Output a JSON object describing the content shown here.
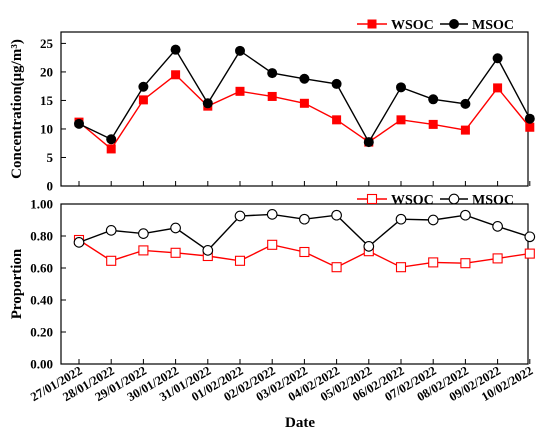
{
  "chart_data": [
    {
      "type": "line",
      "panel": "top",
      "ylabel": "Concentration(μg/m³)",
      "ylim": [
        0,
        27
      ],
      "yticks": [
        0,
        5,
        10,
        15,
        20,
        25
      ],
      "grid": false,
      "legend_position": "top-right",
      "series": [
        {
          "name": "WSOC",
          "color": "#ff0000",
          "marker": "filled-square",
          "values": [
            11.2,
            6.5,
            15.1,
            19.5,
            14.0,
            16.6,
            15.7,
            14.5,
            11.6,
            7.7,
            11.6,
            10.8,
            9.8,
            17.2,
            10.3
          ]
        },
        {
          "name": "MSOC",
          "color": "#000000",
          "marker": "filled-circle",
          "values": [
            10.9,
            8.2,
            17.4,
            23.9,
            14.5,
            23.7,
            19.8,
            18.8,
            17.9,
            7.7,
            17.3,
            15.2,
            14.4,
            22.4,
            11.8
          ]
        }
      ]
    },
    {
      "type": "line",
      "panel": "bottom",
      "ylabel": "Proportion",
      "xlabel": "Date",
      "ylim": [
        0,
        1.0
      ],
      "yticks": [
        "0.00",
        "0.20",
        "0.40",
        "0.60",
        "0.80",
        "1.00"
      ],
      "grid": false,
      "legend_position": "top-right",
      "series": [
        {
          "name": "WSOC",
          "color": "#ff0000",
          "marker": "open-square",
          "values": [
            0.775,
            0.645,
            0.71,
            0.695,
            0.675,
            0.645,
            0.745,
            0.7,
            0.605,
            0.705,
            0.605,
            0.635,
            0.63,
            0.66,
            0.69
          ]
        },
        {
          "name": "MSOC",
          "color": "#000000",
          "marker": "open-circle",
          "values": [
            0.76,
            0.835,
            0.815,
            0.85,
            0.71,
            0.925,
            0.935,
            0.905,
            0.93,
            0.735,
            0.905,
            0.9,
            0.93,
            0.86,
            0.795
          ]
        }
      ]
    }
  ],
  "categories": [
    "27/01/2022",
    "28/01/2022",
    "29/01/2022",
    "30/01/2022",
    "31/01/2022",
    "01/02/2022",
    "02/02/2022",
    "03/02/2022",
    "04/02/2022",
    "05/02/2022",
    "06/02/2022",
    "07/02/2022",
    "08/02/2022",
    "09/02/2022",
    "10/02/2022"
  ]
}
